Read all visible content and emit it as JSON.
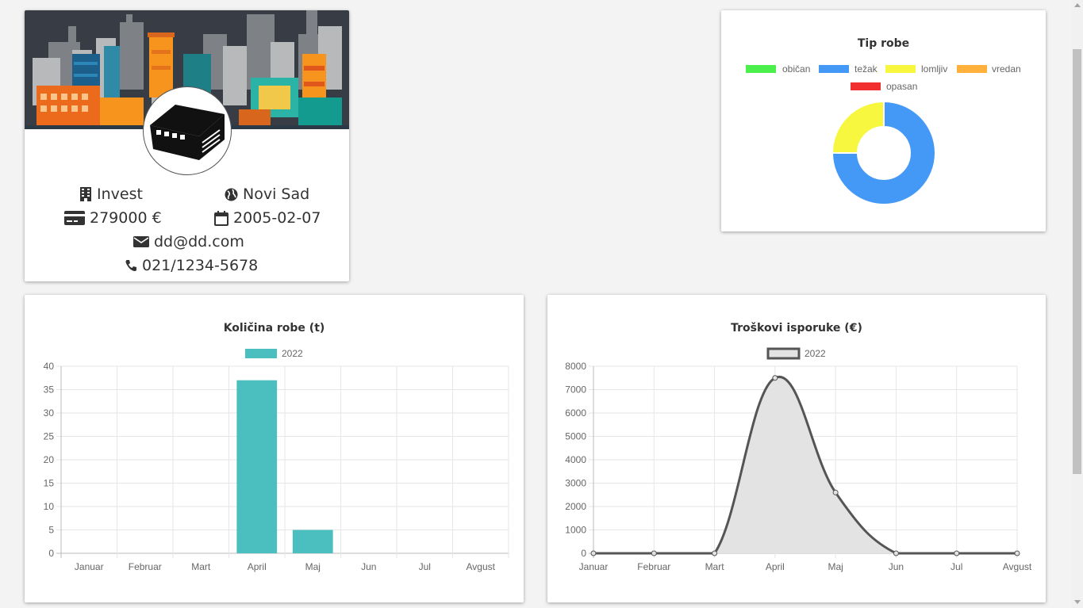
{
  "profile": {
    "name": "Invest",
    "city": "Novi Sad",
    "capital": "279000 €",
    "founded": "2005-02-07",
    "email": "dd@dd.com",
    "phone": "021/1234-5678"
  },
  "colors": {
    "obican": "#4cf04c",
    "tezak": "#4499f7",
    "lomljiv": "#f7f740",
    "vredan": "#ffb13c",
    "opasan": "#f12f2f",
    "bar": "#4bbfbf",
    "line": "#555555",
    "line_fill": "#e3e3e3"
  },
  "charts": {
    "pie": {
      "title": "Tip robe",
      "chart_data": {
        "type": "pie",
        "categories": [
          "običan",
          "težak",
          "lomljiv",
          "vredan",
          "opasan"
        ],
        "values": [
          0,
          3,
          1,
          0,
          0
        ],
        "colors": [
          "#4cf04c",
          "#4499f7",
          "#f7f740",
          "#ffb13c",
          "#f12f2f"
        ],
        "legend": "top"
      }
    },
    "bar": {
      "title": "Količina robe (t)",
      "chart_data": {
        "type": "bar",
        "categories": [
          "Januar",
          "Februar",
          "Mart",
          "April",
          "Maj",
          "Jun",
          "Jul",
          "Avgust"
        ],
        "series": [
          {
            "name": "2022",
            "values": [
              0,
              0,
              0,
              37,
              5,
              0,
              0,
              0
            ]
          }
        ],
        "ylim": [
          0,
          40
        ],
        "yticks": [
          0,
          5,
          10,
          15,
          20,
          25,
          30,
          35,
          40
        ],
        "grid": true,
        "legend": "top"
      }
    },
    "line": {
      "title": "Troškovi isporuke (€)",
      "chart_data": {
        "type": "area",
        "categories": [
          "Januar",
          "Februar",
          "Mart",
          "April",
          "Maj",
          "Jun",
          "Jul",
          "Avgust"
        ],
        "series": [
          {
            "name": "2022",
            "values": [
              0,
              0,
              0,
              7500,
              2600,
              0,
              0,
              0
            ]
          }
        ],
        "ylim": [
          0,
          8000
        ],
        "yticks": [
          0,
          1000,
          2000,
          3000,
          4000,
          5000,
          6000,
          7000,
          8000
        ],
        "grid": true,
        "legend": "top"
      }
    }
  }
}
